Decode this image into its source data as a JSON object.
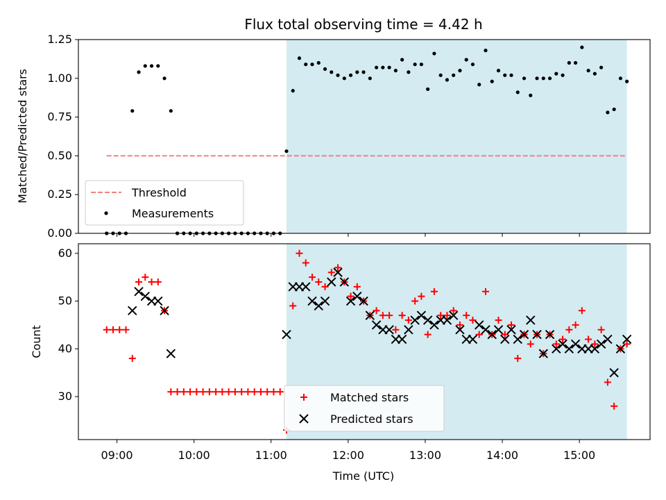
{
  "chart_data": {
    "title": "Flux total observing time = 4.42 h",
    "x_range": [
      "08:30",
      "15:55"
    ],
    "xticks": [
      "09:00",
      "10:00",
      "11:00",
      "12:00",
      "13:00",
      "14:00",
      "15:00"
    ],
    "xlabel": "Time (UTC)",
    "shaded_interval": {
      "start": "11:12",
      "end": "15:37",
      "color": "#d4ebf1"
    },
    "colors": {
      "threshold": "#f08080",
      "measurements": "#000000",
      "matched": "#ff0000",
      "predicted": "#000000"
    },
    "panels": [
      {
        "type": "scatter",
        "ylabel": "Matched/Predicted stars",
        "ylim": [
          0,
          1.25
        ],
        "yticks": [
          "0.00",
          "0.25",
          "0.50",
          "0.75",
          "1.00",
          "1.25"
        ],
        "legend": "lower-left",
        "threshold": {
          "name": "Threshold",
          "value": 0.5,
          "x_start": "08:52",
          "x_end": "15:37"
        },
        "series": [
          {
            "name": "Measurements",
            "marker": "dot",
            "points": [
              [
                "08:52",
                0
              ],
              [
                "08:57",
                0
              ],
              [
                "09:02",
                0
              ],
              [
                "09:07",
                0
              ],
              [
                "09:12",
                0.79
              ],
              [
                "09:17",
                1.04
              ],
              [
                "09:22",
                1.08
              ],
              [
                "09:27",
                1.08
              ],
              [
                "09:32",
                1.08
              ],
              [
                "09:37",
                1.0
              ],
              [
                "09:42",
                0.79
              ],
              [
                "09:47",
                0
              ],
              [
                "09:52",
                0
              ],
              [
                "09:57",
                0
              ],
              [
                "10:02",
                0
              ],
              [
                "10:07",
                0
              ],
              [
                "10:12",
                0
              ],
              [
                "10:17",
                0
              ],
              [
                "10:22",
                0
              ],
              [
                "10:27",
                0
              ],
              [
                "10:32",
                0
              ],
              [
                "10:37",
                0
              ],
              [
                "10:42",
                0
              ],
              [
                "10:47",
                0
              ],
              [
                "10:52",
                0
              ],
              [
                "10:57",
                0
              ],
              [
                "11:02",
                0
              ],
              [
                "11:07",
                0
              ],
              [
                "11:12",
                0.53
              ],
              [
                "11:17",
                0.92
              ],
              [
                "11:22",
                1.13
              ],
              [
                "11:27",
                1.09
              ],
              [
                "11:32",
                1.09
              ],
              [
                "11:37",
                1.1
              ],
              [
                "11:42",
                1.06
              ],
              [
                "11:47",
                1.04
              ],
              [
                "11:52",
                1.02
              ],
              [
                "11:57",
                1.0
              ],
              [
                "12:02",
                1.02
              ],
              [
                "12:07",
                1.04
              ],
              [
                "12:12",
                1.04
              ],
              [
                "12:17",
                1.0
              ],
              [
                "12:22",
                1.07
              ],
              [
                "12:27",
                1.07
              ],
              [
                "12:32",
                1.07
              ],
              [
                "12:37",
                1.05
              ],
              [
                "12:42",
                1.12
              ],
              [
                "12:47",
                1.04
              ],
              [
                "12:52",
                1.09
              ],
              [
                "12:57",
                1.09
              ],
              [
                "13:02",
                0.93
              ],
              [
                "13:07",
                1.16
              ],
              [
                "13:12",
                1.02
              ],
              [
                "13:17",
                0.99
              ],
              [
                "13:22",
                1.02
              ],
              [
                "13:27",
                1.05
              ],
              [
                "13:32",
                1.12
              ],
              [
                "13:37",
                1.09
              ],
              [
                "13:42",
                0.96
              ],
              [
                "13:47",
                1.18
              ],
              [
                "13:52",
                0.98
              ],
              [
                "13:57",
                1.05
              ],
              [
                "14:02",
                1.02
              ],
              [
                "14:07",
                1.02
              ],
              [
                "14:12",
                0.91
              ],
              [
                "14:17",
                1.0
              ],
              [
                "14:22",
                0.89
              ],
              [
                "14:27",
                1.0
              ],
              [
                "14:32",
                1.0
              ],
              [
                "14:37",
                1.0
              ],
              [
                "14:42",
                1.03
              ],
              [
                "14:47",
                1.02
              ],
              [
                "14:52",
                1.1
              ],
              [
                "14:57",
                1.1
              ],
              [
                "15:02",
                1.2
              ],
              [
                "15:07",
                1.05
              ],
              [
                "15:12",
                1.03
              ],
              [
                "15:17",
                1.07
              ],
              [
                "15:22",
                0.78
              ],
              [
                "15:27",
                0.8
              ],
              [
                "15:32",
                1.0
              ],
              [
                "15:37",
                0.98
              ]
            ]
          }
        ]
      },
      {
        "type": "scatter",
        "ylabel": "Count",
        "ylim": [
          21,
          62
        ],
        "yticks": [
          "30",
          "40",
          "50",
          "60"
        ],
        "legend": "lower-center",
        "series": [
          {
            "name": "Matched stars",
            "marker": "plus",
            "points": [
              [
                "08:52",
                44
              ],
              [
                "08:57",
                44
              ],
              [
                "09:02",
                44
              ],
              [
                "09:07",
                44
              ],
              [
                "09:12",
                38
              ],
              [
                "09:17",
                54
              ],
              [
                "09:22",
                55
              ],
              [
                "09:27",
                54
              ],
              [
                "09:32",
                54
              ],
              [
                "09:37",
                48
              ],
              [
                "09:42",
                31
              ],
              [
                "09:47",
                31
              ],
              [
                "09:52",
                31
              ],
              [
                "09:57",
                31
              ],
              [
                "10:02",
                31
              ],
              [
                "10:07",
                31
              ],
              [
                "10:12",
                31
              ],
              [
                "10:17",
                31
              ],
              [
                "10:22",
                31
              ],
              [
                "10:27",
                31
              ],
              [
                "10:32",
                31
              ],
              [
                "10:37",
                31
              ],
              [
                "10:42",
                31
              ],
              [
                "10:47",
                31
              ],
              [
                "10:52",
                31
              ],
              [
                "10:57",
                31
              ],
              [
                "11:02",
                31
              ],
              [
                "11:07",
                31
              ],
              [
                "11:12",
                23
              ],
              [
                "11:17",
                49
              ],
              [
                "11:22",
                60
              ],
              [
                "11:27",
                58
              ],
              [
                "11:32",
                55
              ],
              [
                "11:37",
                54
              ],
              [
                "11:42",
                53
              ],
              [
                "11:47",
                56
              ],
              [
                "11:52",
                57
              ],
              [
                "11:57",
                54
              ],
              [
                "12:02",
                51
              ],
              [
                "12:07",
                53
              ],
              [
                "12:12",
                50
              ],
              [
                "12:17",
                47
              ],
              [
                "12:22",
                48
              ],
              [
                "12:27",
                47
              ],
              [
                "12:32",
                47
              ],
              [
                "12:37",
                44
              ],
              [
                "12:42",
                47
              ],
              [
                "12:47",
                46
              ],
              [
                "12:52",
                50
              ],
              [
                "12:57",
                51
              ],
              [
                "13:02",
                43
              ],
              [
                "13:07",
                52
              ],
              [
                "13:12",
                47
              ],
              [
                "13:17",
                47
              ],
              [
                "13:22",
                48
              ],
              [
                "13:27",
                45
              ],
              [
                "13:32",
                47
              ],
              [
                "13:37",
                46
              ],
              [
                "13:42",
                43
              ],
              [
                "13:47",
                52
              ],
              [
                "13:52",
                43
              ],
              [
                "13:57",
                46
              ],
              [
                "14:02",
                43
              ],
              [
                "14:07",
                45
              ],
              [
                "14:12",
                38
              ],
              [
                "14:17",
                43
              ],
              [
                "14:22",
                41
              ],
              [
                "14:27",
                43
              ],
              [
                "14:32",
                39
              ],
              [
                "14:37",
                43
              ],
              [
                "14:42",
                41
              ],
              [
                "14:47",
                42
              ],
              [
                "14:52",
                44
              ],
              [
                "14:57",
                45
              ],
              [
                "15:02",
                48
              ],
              [
                "15:07",
                42
              ],
              [
                "15:12",
                41
              ],
              [
                "15:17",
                44
              ],
              [
                "15:22",
                33
              ],
              [
                "15:27",
                28
              ],
              [
                "15:32",
                40
              ],
              [
                "15:37",
                41
              ]
            ]
          },
          {
            "name": "Predicted stars",
            "marker": "x",
            "points": [
              [
                "09:12",
                48
              ],
              [
                "09:17",
                52
              ],
              [
                "09:22",
                51
              ],
              [
                "09:27",
                50
              ],
              [
                "09:32",
                50
              ],
              [
                "09:37",
                48
              ],
              [
                "09:42",
                39
              ],
              [
                "11:12",
                43
              ],
              [
                "11:17",
                53
              ],
              [
                "11:22",
                53
              ],
              [
                "11:27",
                53
              ],
              [
                "11:32",
                50
              ],
              [
                "11:37",
                49
              ],
              [
                "11:42",
                50
              ],
              [
                "11:47",
                54
              ],
              [
                "11:52",
                56
              ],
              [
                "11:57",
                54
              ],
              [
                "12:02",
                50
              ],
              [
                "12:07",
                51
              ],
              [
                "12:12",
                50
              ],
              [
                "12:17",
                47
              ],
              [
                "12:22",
                45
              ],
              [
                "12:27",
                44
              ],
              [
                "12:32",
                44
              ],
              [
                "12:37",
                42
              ],
              [
                "12:42",
                42
              ],
              [
                "12:47",
                44
              ],
              [
                "12:52",
                46
              ],
              [
                "12:57",
                47
              ],
              [
                "13:02",
                46
              ],
              [
                "13:07",
                45
              ],
              [
                "13:12",
                46
              ],
              [
                "13:17",
                46
              ],
              [
                "13:22",
                47
              ],
              [
                "13:27",
                44
              ],
              [
                "13:32",
                42
              ],
              [
                "13:37",
                42
              ],
              [
                "13:42",
                45
              ],
              [
                "13:47",
                44
              ],
              [
                "13:52",
                43
              ],
              [
                "13:57",
                44
              ],
              [
                "14:02",
                42
              ],
              [
                "14:07",
                44
              ],
              [
                "14:12",
                42
              ],
              [
                "14:17",
                43
              ],
              [
                "14:22",
                46
              ],
              [
                "14:27",
                43
              ],
              [
                "14:32",
                39
              ],
              [
                "14:37",
                43
              ],
              [
                "14:42",
                40
              ],
              [
                "14:47",
                41
              ],
              [
                "14:52",
                40
              ],
              [
                "14:57",
                41
              ],
              [
                "15:02",
                40
              ],
              [
                "15:07",
                40
              ],
              [
                "15:12",
                40
              ],
              [
                "15:17",
                41
              ],
              [
                "15:22",
                42
              ],
              [
                "15:27",
                35
              ],
              [
                "15:32",
                40
              ],
              [
                "15:37",
                42
              ]
            ]
          }
        ]
      }
    ]
  }
}
